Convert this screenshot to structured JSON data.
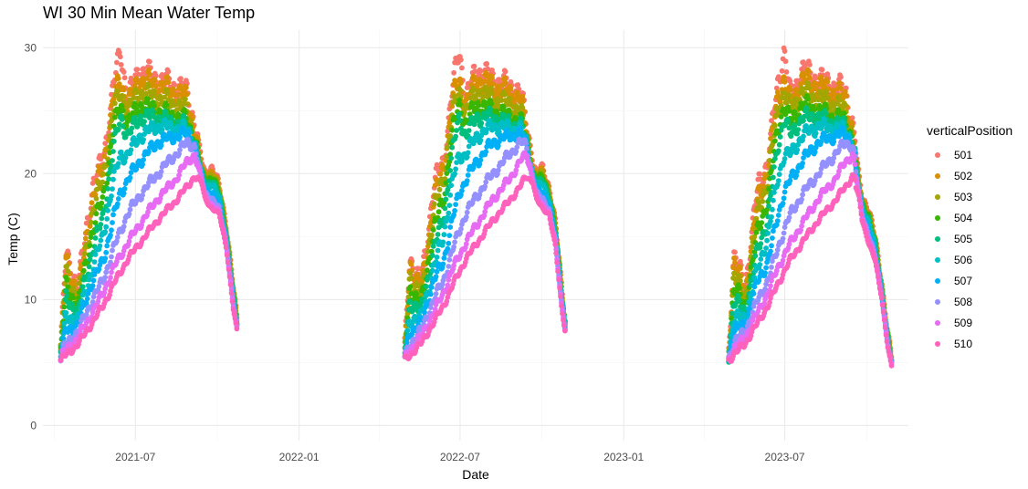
{
  "chart_data": {
    "type": "scatter",
    "title": "WI 30 Min Mean Water Temp",
    "xlabel": "Date",
    "ylabel": "Temp (C)",
    "xlim": [
      "2021-03-19",
      "2023-11-17"
    ],
    "ylim": [
      -1.2,
      31.4
    ],
    "x_ticks": [
      "2021-07-01",
      "2022-01-01",
      "2022-07-01",
      "2023-01-01",
      "2023-07-01"
    ],
    "x_tick_labels": [
      "2021-07",
      "2022-01",
      "2022-07",
      "2023-01",
      "2023-07"
    ],
    "y_ticks": [
      0,
      10,
      20,
      30
    ],
    "y_tick_labels": [
      "0",
      "10",
      "20",
      "30"
    ],
    "grid": true,
    "legend": {
      "title": "verticalPosition",
      "position": "right"
    },
    "series": [
      {
        "name": "501",
        "color": "#F8766D",
        "profile": [
          [
            0,
            6
          ],
          [
            0.03,
            13.5
          ],
          [
            0.1,
            11
          ],
          [
            0.18,
            19
          ],
          [
            0.24,
            21
          ],
          [
            0.3,
            27
          ],
          [
            0.34,
            29.8
          ],
          [
            0.38,
            26
          ],
          [
            0.45,
            28.3
          ],
          [
            0.55,
            27.5
          ],
          [
            0.65,
            27
          ],
          [
            0.72,
            26.5
          ],
          [
            0.76,
            24
          ],
          [
            0.8,
            21
          ],
          [
            0.82,
            20
          ],
          [
            0.86,
            20.5
          ],
          [
            0.9,
            19
          ],
          [
            0.94,
            16
          ],
          [
            0.98,
            11
          ],
          [
            1,
            8.5
          ]
        ]
      },
      {
        "name": "502",
        "color": "#D89000",
        "profile": [
          [
            0,
            6
          ],
          [
            0.03,
            13
          ],
          [
            0.1,
            10.5
          ],
          [
            0.18,
            18
          ],
          [
            0.24,
            20.5
          ],
          [
            0.3,
            26
          ],
          [
            0.34,
            27.5
          ],
          [
            0.38,
            25.5
          ],
          [
            0.45,
            27.5
          ],
          [
            0.55,
            27
          ],
          [
            0.65,
            26.5
          ],
          [
            0.72,
            26
          ],
          [
            0.76,
            23.5
          ],
          [
            0.8,
            20.5
          ],
          [
            0.82,
            19.8
          ],
          [
            0.86,
            20.2
          ],
          [
            0.9,
            18.8
          ],
          [
            0.94,
            15.8
          ],
          [
            0.98,
            10.8
          ],
          [
            1,
            8.4
          ]
        ]
      },
      {
        "name": "503",
        "color": "#A3A500",
        "profile": [
          [
            0,
            5.9
          ],
          [
            0.03,
            12
          ],
          [
            0.1,
            10
          ],
          [
            0.18,
            17
          ],
          [
            0.24,
            19.5
          ],
          [
            0.3,
            25
          ],
          [
            0.34,
            26.5
          ],
          [
            0.38,
            25
          ],
          [
            0.45,
            26.5
          ],
          [
            0.55,
            26
          ],
          [
            0.65,
            25.5
          ],
          [
            0.72,
            25
          ],
          [
            0.76,
            23
          ],
          [
            0.8,
            20.3
          ],
          [
            0.82,
            19.6
          ],
          [
            0.86,
            20
          ],
          [
            0.9,
            18.6
          ],
          [
            0.94,
            15.6
          ],
          [
            0.98,
            10.6
          ],
          [
            1,
            8.3
          ]
        ]
      },
      {
        "name": "504",
        "color": "#39B600",
        "profile": [
          [
            0,
            5.8
          ],
          [
            0.03,
            11
          ],
          [
            0.1,
            9.5
          ],
          [
            0.18,
            15.5
          ],
          [
            0.24,
            18
          ],
          [
            0.3,
            23.5
          ],
          [
            0.34,
            25.5
          ],
          [
            0.38,
            24
          ],
          [
            0.45,
            25.5
          ],
          [
            0.55,
            25
          ],
          [
            0.65,
            24.5
          ],
          [
            0.72,
            24.2
          ],
          [
            0.76,
            22.8
          ],
          [
            0.8,
            20.1
          ],
          [
            0.82,
            19.4
          ],
          [
            0.86,
            19.8
          ],
          [
            0.9,
            18.4
          ],
          [
            0.94,
            15.4
          ],
          [
            0.98,
            10.4
          ],
          [
            1,
            8.2
          ]
        ]
      },
      {
        "name": "505",
        "color": "#00BF7D",
        "profile": [
          [
            0,
            5.7
          ],
          [
            0.03,
            10
          ],
          [
            0.1,
            9
          ],
          [
            0.18,
            14
          ],
          [
            0.24,
            16.5
          ],
          [
            0.3,
            22
          ],
          [
            0.34,
            24.5
          ],
          [
            0.38,
            23
          ],
          [
            0.45,
            24.5
          ],
          [
            0.55,
            24.5
          ],
          [
            0.65,
            24
          ],
          [
            0.72,
            23.8
          ],
          [
            0.76,
            22.6
          ],
          [
            0.8,
            20
          ],
          [
            0.82,
            19.2
          ],
          [
            0.86,
            19.5
          ],
          [
            0.9,
            18.2
          ],
          [
            0.94,
            15.2
          ],
          [
            0.98,
            10.2
          ],
          [
            1,
            8.1
          ]
        ]
      },
      {
        "name": "506",
        "color": "#00BFC4",
        "profile": [
          [
            0,
            5.6
          ],
          [
            0.03,
            8.5
          ],
          [
            0.1,
            8.5
          ],
          [
            0.18,
            12.5
          ],
          [
            0.24,
            15
          ],
          [
            0.3,
            19.5
          ],
          [
            0.34,
            21.5
          ],
          [
            0.38,
            21.5
          ],
          [
            0.45,
            23
          ],
          [
            0.55,
            23.8
          ],
          [
            0.65,
            23.6
          ],
          [
            0.72,
            23.5
          ],
          [
            0.76,
            22.4
          ],
          [
            0.8,
            19.8
          ],
          [
            0.82,
            19
          ],
          [
            0.86,
            19.2
          ],
          [
            0.9,
            18
          ],
          [
            0.94,
            15
          ],
          [
            0.98,
            10
          ],
          [
            1,
            8
          ]
        ]
      },
      {
        "name": "507",
        "color": "#00B0F6",
        "profile": [
          [
            0,
            5.5
          ],
          [
            0.03,
            7.5
          ],
          [
            0.1,
            8
          ],
          [
            0.18,
            11.5
          ],
          [
            0.24,
            13
          ],
          [
            0.3,
            16.5
          ],
          [
            0.34,
            18.5
          ],
          [
            0.38,
            19.5
          ],
          [
            0.45,
            21
          ],
          [
            0.55,
            22.5
          ],
          [
            0.65,
            23
          ],
          [
            0.72,
            23.2
          ],
          [
            0.76,
            22.3
          ],
          [
            0.8,
            19.7
          ],
          [
            0.82,
            18.8
          ],
          [
            0.86,
            18.5
          ],
          [
            0.9,
            17.5
          ],
          [
            0.94,
            14.8
          ],
          [
            0.98,
            9.8
          ],
          [
            1,
            7.9
          ]
        ]
      },
      {
        "name": "508",
        "color": "#9590FF",
        "profile": [
          [
            0,
            5.4
          ],
          [
            0.03,
            6.5
          ],
          [
            0.1,
            7.5
          ],
          [
            0.18,
            10
          ],
          [
            0.24,
            11.5
          ],
          [
            0.3,
            14
          ],
          [
            0.34,
            15.5
          ],
          [
            0.38,
            16.8
          ],
          [
            0.45,
            18.3
          ],
          [
            0.55,
            20
          ],
          [
            0.65,
            21.5
          ],
          [
            0.72,
            22.5
          ],
          [
            0.76,
            22.2
          ],
          [
            0.8,
            19.6
          ],
          [
            0.82,
            18.5
          ],
          [
            0.86,
            18
          ],
          [
            0.9,
            17.2
          ],
          [
            0.94,
            14.6
          ],
          [
            0.98,
            9.6
          ],
          [
            1,
            7.8
          ]
        ]
      },
      {
        "name": "509",
        "color": "#E76BF3",
        "profile": [
          [
            0,
            5.3
          ],
          [
            0.03,
            6
          ],
          [
            0.1,
            7
          ],
          [
            0.18,
            9
          ],
          [
            0.24,
            10.5
          ],
          [
            0.3,
            12.5
          ],
          [
            0.34,
            13.5
          ],
          [
            0.38,
            14.5
          ],
          [
            0.45,
            16
          ],
          [
            0.55,
            18
          ],
          [
            0.65,
            19.5
          ],
          [
            0.72,
            21
          ],
          [
            0.76,
            21.5
          ],
          [
            0.8,
            19.5
          ],
          [
            0.82,
            18.2
          ],
          [
            0.86,
            17.5
          ],
          [
            0.9,
            17
          ],
          [
            0.94,
            14.4
          ],
          [
            0.98,
            9.4
          ],
          [
            1,
            7.7
          ]
        ]
      },
      {
        "name": "510",
        "color": "#FF62BC",
        "profile": [
          [
            0,
            5.2
          ],
          [
            0.03,
            5.6
          ],
          [
            0.1,
            6.5
          ],
          [
            0.18,
            8.2
          ],
          [
            0.24,
            9.5
          ],
          [
            0.3,
            11.2
          ],
          [
            0.34,
            12.2
          ],
          [
            0.38,
            13.2
          ],
          [
            0.45,
            14.5
          ],
          [
            0.55,
            16.3
          ],
          [
            0.65,
            17.8
          ],
          [
            0.72,
            19
          ],
          [
            0.76,
            19.8
          ],
          [
            0.8,
            19.3
          ],
          [
            0.82,
            18
          ],
          [
            0.86,
            17.2
          ],
          [
            0.9,
            16.8
          ],
          [
            0.94,
            14.2
          ],
          [
            0.98,
            9.2
          ],
          [
            1,
            7.6
          ]
        ]
      }
    ],
    "seasons": [
      {
        "start": "2021-04-08",
        "end": "2021-10-23",
        "end_scale": [
          1,
          1
        ]
      },
      {
        "start": "2022-04-30",
        "end": "2022-10-27",
        "end_scale": [
          1,
          1
        ]
      },
      {
        "start": "2023-04-29",
        "end": "2023-10-29",
        "end_scale": [
          0.97,
          0.62
        ]
      }
    ]
  }
}
